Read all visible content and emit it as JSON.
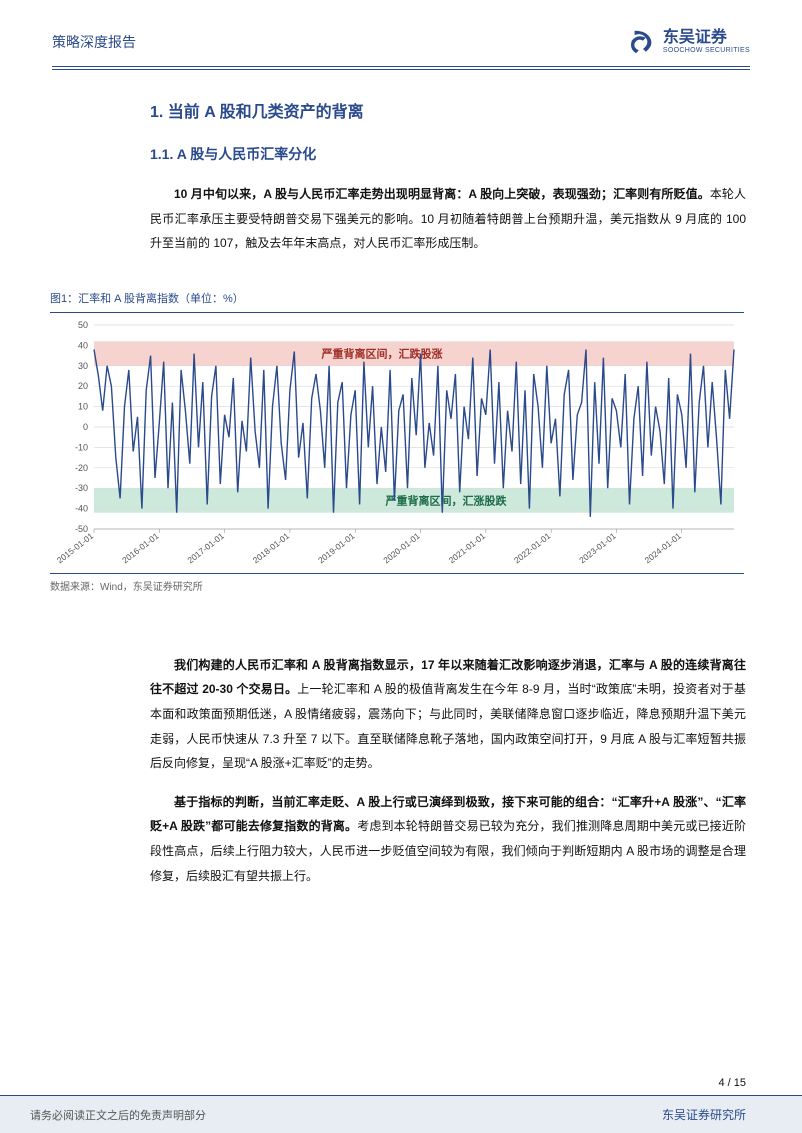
{
  "header": {
    "title": "策略深度报告",
    "logo_cn": "东吴证券",
    "logo_en": "SOOCHOW SECURITIES"
  },
  "section": {
    "h1": "1. 当前 A 股和几类资产的背离",
    "h2": "1.1. A 股与人民币汇率分化"
  },
  "para1_bold": "10 月中旬以来，A 股与人民币汇率走势出现明显背离：A 股向上突破，表现强劲；汇率则有所贬值。",
  "para1_rest": "本轮人民币汇率承压主要受特朗普交易下强美元的影响。10 月初随着特朗普上台预期升温，美元指数从 9 月底的 100 升至当前的 107，触及去年年末高点，对人民币汇率形成压制。",
  "figure": {
    "caption": "图1：汇率和 A 股背离指数（单位：%）",
    "source": "数据来源：Wind，东吴证券研究所",
    "annotation_top": "严重背离区间，汇跌股涨",
    "annotation_bottom": "严重背离区间，汇涨股跌",
    "ylim": [
      -50,
      50
    ],
    "yticks": [
      -50,
      -40,
      -30,
      -20,
      -10,
      0,
      10,
      20,
      30,
      40,
      50
    ],
    "xticks": [
      "2015-01-01",
      "2016-01-01",
      "2017-01-01",
      "2018-01-01",
      "2019-01-01",
      "2020-01-01",
      "2021-01-01",
      "2022-01-01",
      "2023-01-01",
      "2024-01-01"
    ],
    "line_color": "#2a4a8c",
    "top_band_color": "#f6d3cf",
    "bottom_band_color": "#cde9dc",
    "grid_color": "#d9d9d9",
    "axis_font_color": "#555555",
    "band_top": [
      30,
      42
    ],
    "band_bottom": [
      -42,
      -30
    ],
    "plot_bg": "#ffffff",
    "series": [
      38,
      25,
      8,
      30,
      20,
      -15,
      -35,
      10,
      28,
      -12,
      5,
      -40,
      18,
      35,
      -25,
      2,
      32,
      -30,
      12,
      -42,
      28,
      8,
      -18,
      36,
      -10,
      22,
      -38,
      15,
      30,
      -28,
      6,
      -5,
      24,
      -32,
      3,
      -12,
      34,
      -2,
      -20,
      28,
      -40,
      10,
      30,
      -8,
      -26,
      18,
      37,
      -15,
      2,
      -35,
      14,
      26,
      8,
      -20,
      30,
      -42,
      12,
      22,
      -30,
      6,
      18,
      -38,
      32,
      -10,
      20,
      -28,
      0,
      -22,
      28,
      -36,
      8,
      16,
      -30,
      24,
      -4,
      36,
      -20,
      2,
      -14,
      30,
      -42,
      18,
      4,
      26,
      -32,
      10,
      -6,
      34,
      -24,
      14,
      6,
      38,
      -18,
      22,
      -30,
      8,
      -12,
      32,
      -28,
      18,
      -40,
      26,
      10,
      -20,
      30,
      -8,
      4,
      -34,
      16,
      28,
      -26,
      6,
      12,
      38,
      -44,
      22,
      -18,
      34,
      -30,
      14,
      8,
      -10,
      26,
      -38,
      4,
      20,
      -24,
      32,
      -14,
      10,
      -2,
      -28,
      24,
      -40,
      16,
      6,
      -20,
      36,
      -32,
      12,
      30,
      -10,
      22,
      -6,
      -38,
      28,
      4,
      38
    ]
  },
  "para2_bold": "我们构建的人民币汇率和 A 股背离指数显示，17 年以来随着汇改影响逐步消退，汇率与 A 股的连续背离往往不超过 20-30 个交易日。",
  "para2_rest": "上一轮汇率和 A 股的极值背离发生在今年 8-9 月，当时“政策底”未明，投资者对于基本面和政策面预期低迷，A 股情绪疲弱，震荡向下；与此同时，美联储降息窗口逐步临近，降息预期升温下美元走弱，人民币快速从 7.3 升至 7 以下。直至联储降息靴子落地，国内政策空间打开，9 月底 A 股与汇率短暂共振后反向修复，呈现“A 股涨+汇率贬”的走势。",
  "para3_bold": "基于指标的判断，当前汇率走贬、A 股上行或已演绎到极致，接下来可能的组合：“汇率升+A 股涨”、“汇率贬+A 股跌”都可能去修复指数的背离。",
  "para3_rest": "考虑到本轮特朗普交易已较为充分，我们推测降息周期中美元或已接近阶段性高点，后续上行阻力较大，人民币进一步贬值空间较为有限，我们倾向于判断短期内 A 股市场的调整是合理修复，后续股汇有望共振上行。",
  "footer": {
    "page": "4 / 15",
    "disclaimer": "请务必阅读正文之后的免责声明部分",
    "right": "东吴证券研究所"
  },
  "colors": {
    "brand": "#2a4a8c",
    "text": "#111111"
  }
}
